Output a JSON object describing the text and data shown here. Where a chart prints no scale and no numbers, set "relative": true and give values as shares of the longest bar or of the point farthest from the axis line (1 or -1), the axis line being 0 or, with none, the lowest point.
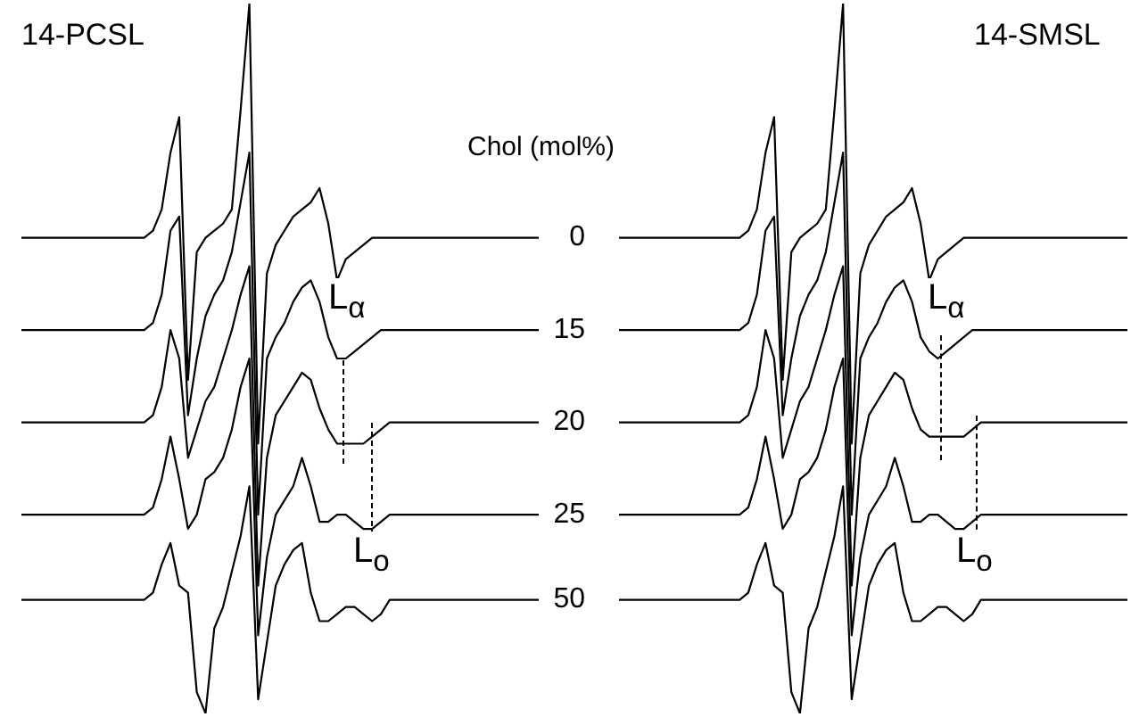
{
  "chart_data": [
    {
      "type": "line",
      "title": "14-PCSL",
      "legend_title": "Chol (mol%)",
      "relative": true,
      "marker": "none",
      "categories": [
        null,
        null,
        null,
        null,
        null,
        null,
        null,
        null,
        null,
        null,
        null,
        null,
        null,
        null,
        null,
        null,
        null,
        null,
        null,
        null,
        null,
        null,
        null,
        null,
        null,
        null,
        null,
        null,
        null,
        null,
        null,
        null,
        null,
        null,
        null,
        null,
        null,
        null,
        null,
        null,
        null,
        null,
        null,
        null,
        null,
        null,
        null,
        null,
        null,
        null,
        null,
        null,
        null,
        null,
        null,
        null,
        null,
        null,
        null,
        null
      ],
      "series": [
        {
          "name": "0",
          "color": "#000000",
          "values": [
            0.67,
            0.67,
            0.67,
            0.67,
            0.67,
            0.67,
            0.67,
            0.67,
            0.67,
            0.67,
            0.67,
            0.67,
            0.67,
            0.67,
            0.67,
            0.68,
            0.71,
            0.79,
            0.84,
            0.47,
            0.65,
            0.67,
            0.68,
            0.69,
            0.71,
            0.85,
            1.0,
            0.38,
            0.62,
            0.66,
            0.68,
            0.7,
            0.71,
            0.72,
            0.74,
            0.69,
            0.61,
            0.64,
            0.65,
            0.66,
            0.67,
            0.67,
            0.67,
            0.67,
            0.67,
            0.67,
            0.67,
            0.67,
            0.67,
            0.67,
            0.67,
            0.67,
            0.67,
            0.67,
            0.67,
            0.67,
            0.67,
            0.67,
            0.67,
            0.67
          ]
        },
        {
          "name": "15",
          "color": "#000000",
          "values": [
            0.54,
            0.54,
            0.54,
            0.54,
            0.54,
            0.54,
            0.54,
            0.54,
            0.54,
            0.54,
            0.54,
            0.54,
            0.54,
            0.54,
            0.54,
            0.55,
            0.59,
            0.68,
            0.7,
            0.42,
            0.5,
            0.56,
            0.59,
            0.61,
            0.65,
            0.72,
            0.79,
            0.28,
            0.5,
            0.53,
            0.55,
            0.58,
            0.6,
            0.61,
            0.58,
            0.53,
            0.5,
            0.5,
            0.51,
            0.52,
            0.53,
            0.54,
            0.54,
            0.54,
            0.54,
            0.54,
            0.54,
            0.54,
            0.54,
            0.54,
            0.54,
            0.54,
            0.54,
            0.54,
            0.54,
            0.54,
            0.54,
            0.54,
            0.54,
            0.54
          ]
        },
        {
          "name": "20",
          "color": "#000000",
          "values": [
            0.41,
            0.41,
            0.41,
            0.41,
            0.41,
            0.41,
            0.41,
            0.41,
            0.41,
            0.41,
            0.41,
            0.41,
            0.41,
            0.41,
            0.41,
            0.42,
            0.46,
            0.54,
            0.5,
            0.36,
            0.4,
            0.44,
            0.46,
            0.5,
            0.54,
            0.59,
            0.63,
            0.18,
            0.36,
            0.42,
            0.44,
            0.46,
            0.48,
            0.47,
            0.43,
            0.4,
            0.38,
            0.38,
            0.38,
            0.38,
            0.39,
            0.4,
            0.41,
            0.41,
            0.41,
            0.41,
            0.41,
            0.41,
            0.41,
            0.41,
            0.41,
            0.41,
            0.41,
            0.41,
            0.41,
            0.41,
            0.41,
            0.41,
            0.41,
            0.41
          ]
        },
        {
          "name": "25",
          "color": "#000000",
          "values": [
            0.28,
            0.28,
            0.28,
            0.28,
            0.28,
            0.28,
            0.28,
            0.28,
            0.28,
            0.28,
            0.28,
            0.28,
            0.28,
            0.28,
            0.28,
            0.29,
            0.33,
            0.39,
            0.33,
            0.26,
            0.28,
            0.33,
            0.34,
            0.36,
            0.4,
            0.46,
            0.5,
            0.11,
            0.22,
            0.28,
            0.3,
            0.32,
            0.36,
            0.32,
            0.27,
            0.27,
            0.28,
            0.28,
            0.27,
            0.26,
            0.26,
            0.27,
            0.28,
            0.28,
            0.28,
            0.28,
            0.28,
            0.28,
            0.28,
            0.28,
            0.28,
            0.28,
            0.28,
            0.28,
            0.28,
            0.28,
            0.28,
            0.28,
            0.28,
            0.28
          ]
        },
        {
          "name": "50",
          "color": "#000000",
          "values": [
            0.16,
            0.16,
            0.16,
            0.16,
            0.16,
            0.16,
            0.16,
            0.16,
            0.16,
            0.16,
            0.16,
            0.16,
            0.16,
            0.16,
            0.16,
            0.17,
            0.21,
            0.24,
            0.18,
            0.17,
            0.03,
            0.0,
            0.12,
            0.15,
            0.2,
            0.25,
            0.32,
            0.02,
            0.1,
            0.18,
            0.21,
            0.23,
            0.24,
            0.17,
            0.13,
            0.13,
            0.14,
            0.15,
            0.15,
            0.14,
            0.13,
            0.14,
            0.16,
            0.16,
            0.16,
            0.16,
            0.16,
            0.16,
            0.16,
            0.16,
            0.16,
            0.16,
            0.16,
            0.16,
            0.16,
            0.16,
            0.16,
            0.16,
            0.16,
            0.16
          ]
        }
      ],
      "annotations": [
        "L$_{α}$",
        "L$_{o}$"
      ]
    },
    {
      "type": "line",
      "title": "14-SMSL",
      "relative": true,
      "marker": "none",
      "categories": [
        null,
        null,
        null,
        null,
        null,
        null,
        null,
        null,
        null,
        null,
        null,
        null,
        null,
        null,
        null,
        null,
        null,
        null,
        null,
        null,
        null,
        null,
        null,
        null,
        null,
        null,
        null,
        null,
        null,
        null,
        null,
        null,
        null,
        null,
        null,
        null,
        null,
        null,
        null,
        null,
        null,
        null,
        null,
        null,
        null,
        null,
        null,
        null,
        null,
        null,
        null,
        null,
        null,
        null,
        null,
        null,
        null,
        null,
        null,
        null
      ],
      "series": [
        {
          "color": "#000000",
          "values": [
            0.67,
            0.67,
            0.67,
            0.67,
            0.67,
            0.67,
            0.67,
            0.67,
            0.67,
            0.67,
            0.67,
            0.67,
            0.67,
            0.67,
            0.67,
            0.68,
            0.71,
            0.79,
            0.84,
            0.47,
            0.65,
            0.67,
            0.68,
            0.69,
            0.71,
            0.85,
            1.0,
            0.38,
            0.62,
            0.66,
            0.68,
            0.7,
            0.71,
            0.72,
            0.74,
            0.69,
            0.61,
            0.64,
            0.65,
            0.66,
            0.67,
            0.67,
            0.67,
            0.67,
            0.67,
            0.67,
            0.67,
            0.67,
            0.67,
            0.67,
            0.67,
            0.67,
            0.67,
            0.67,
            0.67,
            0.67,
            0.67,
            0.67,
            0.67,
            0.67
          ]
        },
        {
          "color": "#000000",
          "values": [
            0.54,
            0.54,
            0.54,
            0.54,
            0.54,
            0.54,
            0.54,
            0.54,
            0.54,
            0.54,
            0.54,
            0.54,
            0.54,
            0.54,
            0.54,
            0.55,
            0.59,
            0.68,
            0.7,
            0.42,
            0.5,
            0.56,
            0.59,
            0.61,
            0.65,
            0.72,
            0.79,
            0.28,
            0.5,
            0.53,
            0.55,
            0.58,
            0.6,
            0.61,
            0.58,
            0.53,
            0.51,
            0.5,
            0.51,
            0.52,
            0.53,
            0.54,
            0.54,
            0.54,
            0.54,
            0.54,
            0.54,
            0.54,
            0.54,
            0.54,
            0.54,
            0.54,
            0.54,
            0.54,
            0.54,
            0.54,
            0.54,
            0.54,
            0.54,
            0.54
          ]
        },
        {
          "color": "#000000",
          "values": [
            0.41,
            0.41,
            0.41,
            0.41,
            0.41,
            0.41,
            0.41,
            0.41,
            0.41,
            0.41,
            0.41,
            0.41,
            0.41,
            0.41,
            0.41,
            0.42,
            0.46,
            0.54,
            0.5,
            0.36,
            0.4,
            0.44,
            0.46,
            0.5,
            0.54,
            0.59,
            0.63,
            0.18,
            0.36,
            0.42,
            0.44,
            0.46,
            0.48,
            0.47,
            0.43,
            0.4,
            0.39,
            0.39,
            0.39,
            0.39,
            0.39,
            0.4,
            0.41,
            0.41,
            0.41,
            0.41,
            0.41,
            0.41,
            0.41,
            0.41,
            0.41,
            0.41,
            0.41,
            0.41,
            0.41,
            0.41,
            0.41,
            0.41,
            0.41,
            0.41
          ]
        },
        {
          "color": "#000000",
          "values": [
            0.28,
            0.28,
            0.28,
            0.28,
            0.28,
            0.28,
            0.28,
            0.28,
            0.28,
            0.28,
            0.28,
            0.28,
            0.28,
            0.28,
            0.28,
            0.29,
            0.33,
            0.39,
            0.33,
            0.26,
            0.28,
            0.33,
            0.34,
            0.36,
            0.4,
            0.46,
            0.5,
            0.11,
            0.22,
            0.28,
            0.3,
            0.32,
            0.36,
            0.32,
            0.27,
            0.27,
            0.28,
            0.28,
            0.27,
            0.26,
            0.26,
            0.27,
            0.28,
            0.28,
            0.28,
            0.28,
            0.28,
            0.28,
            0.28,
            0.28,
            0.28,
            0.28,
            0.28,
            0.28,
            0.28,
            0.28,
            0.28,
            0.28,
            0.28,
            0.28
          ]
        },
        {
          "color": "#000000",
          "values": [
            0.16,
            0.16,
            0.16,
            0.16,
            0.16,
            0.16,
            0.16,
            0.16,
            0.16,
            0.16,
            0.16,
            0.16,
            0.16,
            0.16,
            0.16,
            0.17,
            0.21,
            0.24,
            0.18,
            0.17,
            0.03,
            0.0,
            0.12,
            0.15,
            0.2,
            0.25,
            0.32,
            0.02,
            0.1,
            0.18,
            0.21,
            0.23,
            0.24,
            0.17,
            0.13,
            0.13,
            0.14,
            0.15,
            0.15,
            0.14,
            0.13,
            0.14,
            0.16,
            0.16,
            0.16,
            0.16,
            0.16,
            0.16,
            0.16,
            0.16,
            0.16,
            0.16,
            0.16,
            0.16,
            0.16,
            0.16,
            0.16,
            0.16,
            0.16,
            0.16
          ]
        }
      ],
      "annotations": [
        "L$_{α}$",
        "L$_{o}$"
      ]
    }
  ]
}
